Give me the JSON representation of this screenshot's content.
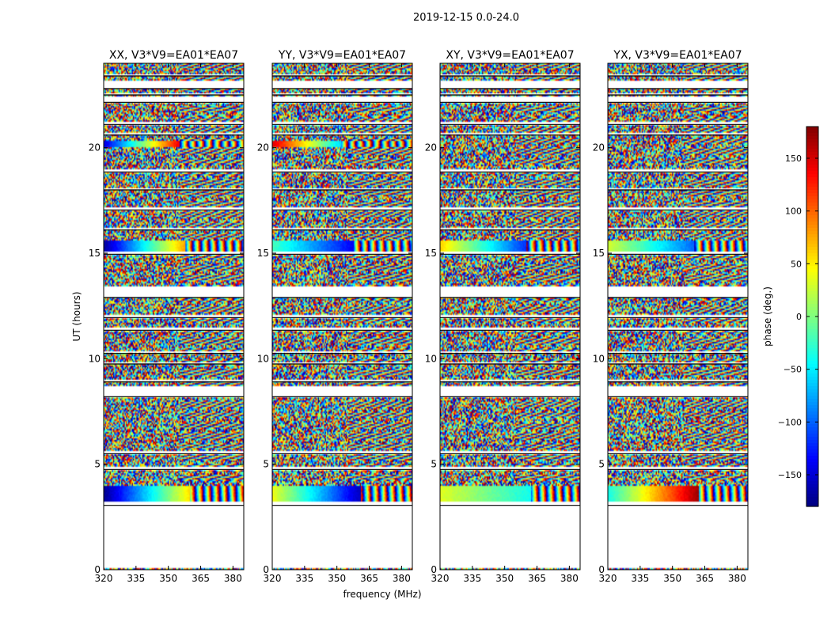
{
  "figure_title": "2019-12-15 0.0-24.0",
  "chart_data": {
    "type": "heatmap",
    "title": "2019-12-15 0.0-24.0",
    "xlabel": "frequency (MHz)",
    "ylabel": "UT (hours)",
    "xlim": [
      320,
      385
    ],
    "ylim": [
      0,
      24
    ],
    "xticks": [
      "320",
      "335",
      "350",
      "365",
      "380"
    ],
    "yticks": [
      "0",
      "5",
      "10",
      "15",
      "20"
    ],
    "panels": [
      {
        "title": "XX, V3*V9=EA01*EA07",
        "coherent_bands": [
          {
            "t0": 3.2,
            "t1": 4.0,
            "phase_start": -175,
            "phase_end": 55,
            "f_break": 360
          },
          {
            "t0": 15.1,
            "t1": 15.6,
            "phase_start": -170,
            "phase_end": 80,
            "f_break": 358
          },
          {
            "t0": 20.0,
            "t1": 20.3,
            "phase_start": -150,
            "phase_end": 140,
            "f_break": 355
          }
        ]
      },
      {
        "title": "YY, V3*V9=EA01*EA07",
        "coherent_bands": [
          {
            "t0": 3.2,
            "t1": 4.0,
            "phase_start": 40,
            "phase_end": -160,
            "f_break": 361
          },
          {
            "t0": 15.1,
            "t1": 15.6,
            "phase_start": -20,
            "phase_end": -140,
            "f_break": 358
          },
          {
            "t0": 20.0,
            "t1": 20.3,
            "phase_start": 150,
            "phase_end": -60,
            "f_break": 352
          }
        ]
      },
      {
        "title": "XY, V3*V9=EA01*EA07",
        "coherent_bands": [
          {
            "t0": 3.2,
            "t1": 4.0,
            "phase_start": 35,
            "phase_end": -40,
            "f_break": 362
          },
          {
            "t0": 15.1,
            "t1": 15.6,
            "phase_start": 60,
            "phase_end": -120,
            "f_break": 360
          }
        ]
      },
      {
        "title": "YX, V3*V9=EA01*EA07",
        "coherent_bands": [
          {
            "t0": 3.2,
            "t1": 4.0,
            "phase_start": -40,
            "phase_end": 170,
            "f_break": 362
          },
          {
            "t0": 15.1,
            "t1": 15.6,
            "phase_start": 30,
            "phase_end": -100,
            "f_break": 360
          }
        ]
      }
    ],
    "flagged_ut_ranges": [
      [
        0.05,
        3.05
      ],
      [
        3.05,
        3.2
      ],
      [
        4.75,
        4.85
      ],
      [
        5.5,
        5.6
      ],
      [
        8.2,
        8.7
      ],
      [
        8.9,
        9.0
      ],
      [
        9.75,
        9.85
      ],
      [
        10.25,
        10.35
      ],
      [
        11.35,
        11.45
      ],
      [
        11.95,
        12.05
      ],
      [
        12.9,
        13.4
      ],
      [
        14.95,
        15.05
      ],
      [
        16.1,
        16.2
      ],
      [
        17.05,
        17.15
      ],
      [
        18.0,
        18.1
      ],
      [
        18.85,
        19.0
      ],
      [
        20.6,
        20.7
      ],
      [
        21.1,
        21.2
      ],
      [
        22.15,
        22.45
      ],
      [
        22.5,
        22.6
      ],
      [
        22.8,
        23.2
      ],
      [
        23.4,
        23.5
      ]
    ],
    "colorbar": {
      "label": "phase (deg.)",
      "range": [
        -180,
        180
      ],
      "ticks": [
        "150",
        "100",
        "50",
        "0",
        "−50",
        "−100",
        "−150"
      ],
      "tick_values": [
        150,
        100,
        50,
        0,
        -50,
        -100,
        -150
      ],
      "colormap": "jet"
    }
  }
}
